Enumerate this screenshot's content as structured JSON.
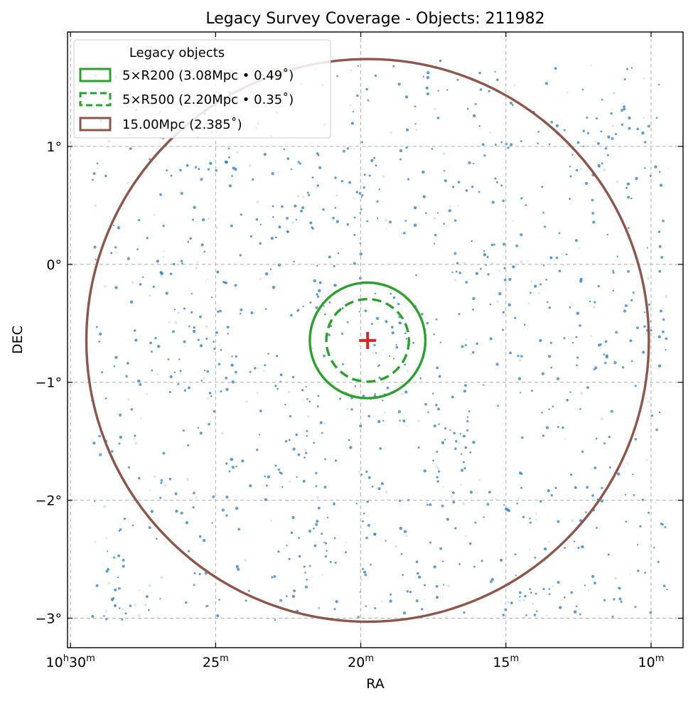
{
  "chart_data": {
    "type": "scatter",
    "title": "Legacy Survey Coverage - Objects: 211982",
    "xlabel": "RA",
    "ylabel": "DEC",
    "x_axis": {
      "ticks": [
        {
          "ra_hours": 10.5,
          "h": "10",
          "m": "30"
        },
        {
          "ra_hours": 10.41667,
          "h": "",
          "m": "25"
        },
        {
          "ra_hours": 10.33333,
          "h": "",
          "m": "20"
        },
        {
          "ra_hours": 10.25,
          "h": "",
          "m": "15"
        },
        {
          "ra_hours": 10.16667,
          "h": "",
          "m": "10"
        }
      ],
      "range_hours": [
        10.5017,
        10.1483
      ],
      "inverted": true
    },
    "y_axis": {
      "ticks": [
        {
          "dec": 1,
          "label": "1°"
        },
        {
          "dec": 0,
          "label": "0°"
        },
        {
          "dec": -1,
          "label": "−1°"
        },
        {
          "dec": -2,
          "label": "−2°"
        },
        {
          "dec": -3,
          "label": "−3°"
        }
      ],
      "range_deg": [
        -3.25,
        1.97
      ]
    },
    "grid": true,
    "legend_location": "upper-left",
    "legend": {
      "title": "Legacy objects",
      "entries": [
        {
          "label": "5×R200 (3.08Mpc • 0.49$^\\circ$)",
          "text": "5×R200 (3.08Mpc • 0.49˚)",
          "style": "solid",
          "color": "#2ca02c"
        },
        {
          "label": "5×R500 (2.20Mpc • 0.35$^\\circ$)",
          "text": "5×R500 (2.20Mpc • 0.35˚)",
          "style": "dashed",
          "color": "#2ca02c"
        },
        {
          "label": "15.00Mpc (2.385$^\\circ$)",
          "text": "15.00Mpc (2.385˚)",
          "style": "solid",
          "color": "#8c564b"
        }
      ]
    },
    "objects": {
      "count": 211982,
      "color": "#1f77b4",
      "ra_range_hours": [
        10.1565,
        10.4875
      ],
      "dec_range_deg": [
        -3.02,
        1.73
      ]
    },
    "center": {
      "ra_hours": 10.3294,
      "dec_deg": -0.645,
      "marker": "plus",
      "color": "#d62728"
    },
    "circles": [
      {
        "name": "5xR200",
        "radius_deg": 0.49,
        "style": "solid",
        "color": "#2ca02c"
      },
      {
        "name": "5xR500",
        "radius_deg": 0.35,
        "style": "dashed",
        "color": "#2ca02c"
      },
      {
        "name": "15Mpc",
        "radius_deg": 2.385,
        "style": "solid",
        "color": "#8c564b"
      }
    ]
  }
}
